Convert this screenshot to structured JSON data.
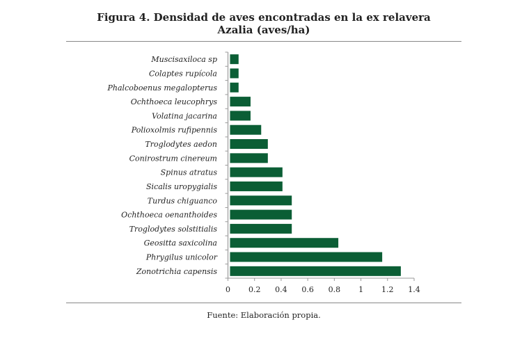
{
  "title_line1": "Figura 4. Densidad de aves encontradas en la ex relavera",
  "title_line2": "Azalia (aves/ha)",
  "source": "Fuente: Elaboración propia.",
  "colors": {
    "bar": "#0b5e35",
    "axis": "#999999",
    "rule": "#888888"
  },
  "chart_data": {
    "type": "bar",
    "orientation": "horizontal",
    "title": "Figura 4. Densidad de aves encontradas en la ex relavera Azalia (aves/ha)",
    "xlabel": "",
    "ylabel": "",
    "xlim": [
      0,
      1.4
    ],
    "xticks": [
      "0",
      "0.2",
      "0.4",
      "0.6",
      "0.8",
      "1",
      "1.2",
      "1.4"
    ],
    "xtick_values": [
      0,
      0.2,
      0.4,
      0.6,
      0.8,
      1,
      1.2,
      1.4
    ],
    "grid": false,
    "legend": "none",
    "categories": [
      "Muscisaxiloca sp",
      "Colaptes rupícola",
      "Phalcoboenus megalopterus",
      "Ochthoeca leucophrys",
      "Volatina jacarina",
      "Polioxolmis rufipennis",
      "Troglodytes aedon",
      "Conirostrum cinereum",
      "Spinus atratus",
      "Sicalis uropygialis",
      "Turdus chiguanco",
      "Ochthoeca oenanthoides",
      "Troglodytes solstitialis",
      "Geositta saxicolina",
      "Phrygilus unicolor",
      "Zonotrichia capensis"
    ],
    "values": [
      0.08,
      0.08,
      0.08,
      0.17,
      0.17,
      0.25,
      0.3,
      0.3,
      0.41,
      0.41,
      0.48,
      0.48,
      0.48,
      0.83,
      1.16,
      1.3
    ]
  }
}
